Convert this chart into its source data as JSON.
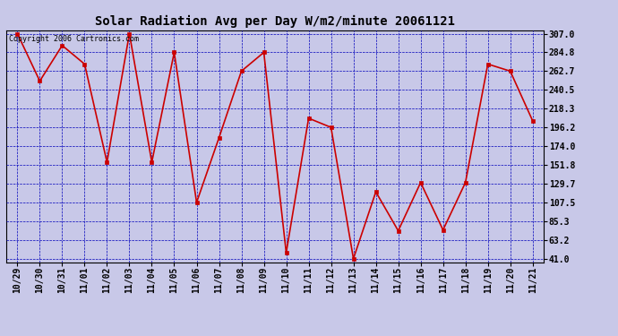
{
  "title": "Solar Radiation Avg per Day W/m2/minute 20061121",
  "copyright_text": "Copyright 2006 Cartronics.com",
  "x_labels": [
    "10/29",
    "10/30",
    "10/31",
    "11/01",
    "11/02",
    "11/03",
    "11/04",
    "11/05",
    "11/06",
    "11/07",
    "11/08",
    "11/09",
    "11/10",
    "11/11",
    "11/12",
    "11/13",
    "11/14",
    "11/15",
    "11/16",
    "11/17",
    "11/18",
    "11/19",
    "11/20",
    "11/21"
  ],
  "y_values": [
    307.0,
    251.0,
    293.0,
    271.0,
    155.0,
    307.0,
    155.0,
    284.8,
    107.5,
    184.0,
    262.7,
    284.8,
    48.0,
    207.0,
    196.2,
    41.0,
    120.0,
    74.0,
    131.0,
    75.0,
    131.0,
    271.0,
    262.7,
    204.0
  ],
  "line_color": "#cc0000",
  "marker_size": 3,
  "line_width": 1.2,
  "bg_color": "#c8c8e8",
  "plot_bg_color": "#c8c8e8",
  "grid_color": "#0000bb",
  "y_ticks": [
    41.0,
    63.2,
    85.3,
    107.5,
    129.7,
    151.8,
    174.0,
    196.2,
    218.3,
    240.5,
    262.7,
    284.8,
    307.0
  ],
  "y_min": 41.0,
  "y_max": 307.0,
  "title_fontsize": 10,
  "tick_fontsize": 7,
  "copyright_fontsize": 6
}
